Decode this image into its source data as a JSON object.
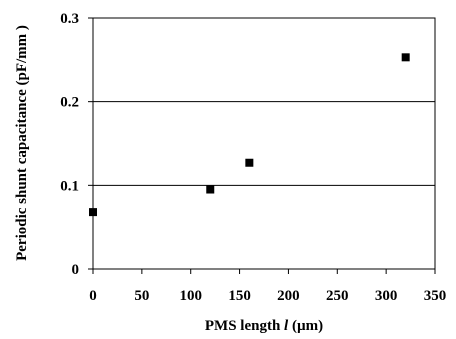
{
  "chart_data": {
    "type": "scatter",
    "title": "",
    "xlabel": {
      "prefix": "PMS length ",
      "variable": "l",
      "suffix": " (µm)"
    },
    "ylabel": "Periodic shunt capacitance (pF/mm )",
    "xlim": [
      0,
      350
    ],
    "ylim": [
      0,
      0.3
    ],
    "xticks": [
      "0",
      "50",
      "100",
      "150",
      "200",
      "250",
      "300",
      "350"
    ],
    "yticks": [
      "0",
      "0.1",
      "0.2",
      "0.3"
    ],
    "grid": "horizontal",
    "legend": "none",
    "marker": "square",
    "color": "#000000",
    "points": [
      {
        "x": 0,
        "y": 0.068
      },
      {
        "x": 120,
        "y": 0.095
      },
      {
        "x": 160,
        "y": 0.127
      },
      {
        "x": 320,
        "y": 0.253
      }
    ]
  }
}
